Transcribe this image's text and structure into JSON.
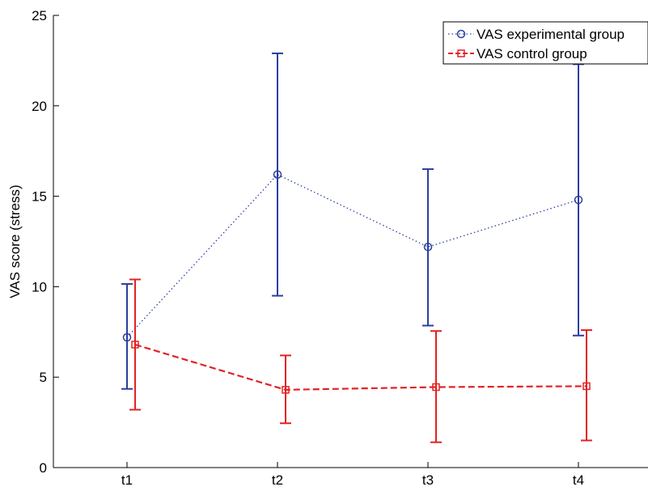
{
  "chart_data": {
    "type": "line",
    "categories": [
      "t1",
      "t2",
      "t3",
      "t4"
    ],
    "ylabel": "VAS score (stress)",
    "xlabel": "",
    "ylim": [
      0,
      25
    ],
    "yticks": [
      0,
      5,
      10,
      15,
      20,
      25
    ],
    "grid": false,
    "legend_position": "top-right",
    "series": [
      {
        "name": "VAS experimental group",
        "color": "#2b3f9e",
        "line_style": "dotted",
        "marker": "circle",
        "values": [
          7.2,
          16.2,
          12.2,
          14.8
        ],
        "error_low": [
          4.35,
          9.5,
          7.85,
          7.3
        ],
        "error_high": [
          10.15,
          22.9,
          16.5,
          22.3
        ]
      },
      {
        "name": "VAS control group",
        "color": "#e32222",
        "line_style": "dashed",
        "marker": "square",
        "values": [
          6.8,
          4.3,
          4.45,
          4.5
        ],
        "error_low": [
          3.2,
          2.45,
          1.4,
          1.5
        ],
        "error_high": [
          10.4,
          6.2,
          7.55,
          7.6
        ]
      }
    ]
  }
}
